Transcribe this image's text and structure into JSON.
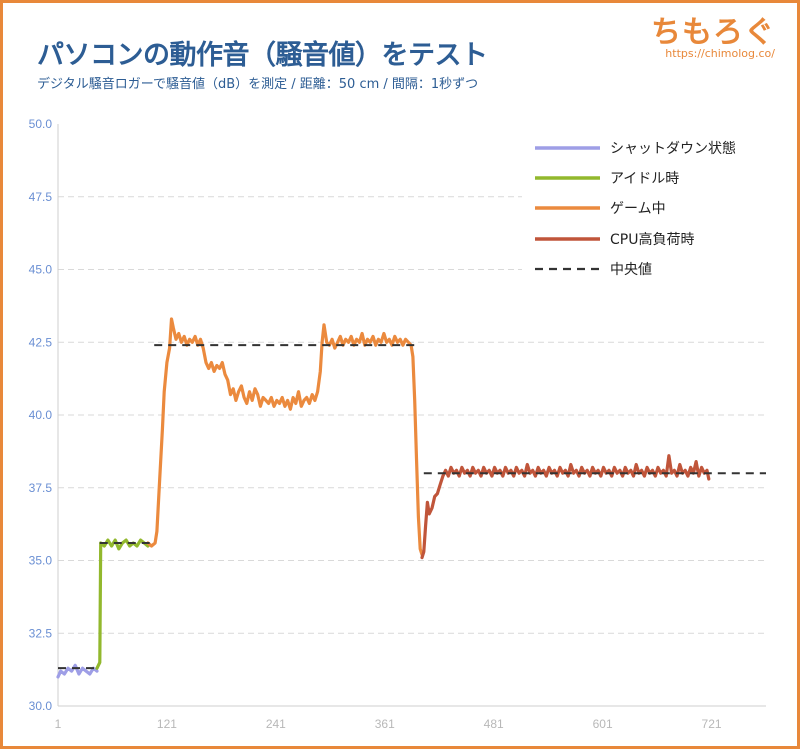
{
  "brand": {
    "logo_text": "ちもろぐ",
    "url": "https://chimolog.co/"
  },
  "chart_data": {
    "type": "line",
    "title": "パソコンの動作音（騒音値）をテスト",
    "subtitle": "デジタル騒音ロガーで騒音値（dB）を測定 / 距離：50 cm / 間隔：1秒ずつ",
    "xlabel": "",
    "ylabel": "",
    "xlim": [
      1,
      781
    ],
    "ylim": [
      30,
      50
    ],
    "x_ticks": [
      1,
      121,
      241,
      361,
      481,
      601,
      721
    ],
    "x_tick_labels": [
      "1",
      "121",
      "241",
      "361",
      "481",
      "601",
      "721"
    ],
    "y_ticks": [
      30,
      32.5,
      35,
      37.5,
      40,
      42.5,
      45,
      47.5,
      50
    ],
    "y_tick_labels": [
      "30.0",
      "32.5",
      "35.0",
      "37.5",
      "40.0",
      "42.5",
      "45.0",
      "47.5",
      "50.0"
    ],
    "grid": true,
    "legend_position": "top-right",
    "series": [
      {
        "name": "シャットダウン状態",
        "color": "#9e9ee6",
        "points": [
          [
            1,
            31.0
          ],
          [
            4,
            31.2
          ],
          [
            8,
            31.1
          ],
          [
            12,
            31.3
          ],
          [
            16,
            31.2
          ],
          [
            20,
            31.4
          ],
          [
            24,
            31.1
          ],
          [
            28,
            31.3
          ],
          [
            32,
            31.2
          ],
          [
            36,
            31.1
          ],
          [
            40,
            31.3
          ],
          [
            44,
            31.2
          ]
        ]
      },
      {
        "name": "アイドル時",
        "color": "#92b82d",
        "points": [
          [
            44,
            31.3
          ],
          [
            47,
            31.5
          ],
          [
            48,
            35.6
          ],
          [
            52,
            35.5
          ],
          [
            56,
            35.7
          ],
          [
            60,
            35.5
          ],
          [
            64,
            35.7
          ],
          [
            68,
            35.4
          ],
          [
            72,
            35.6
          ],
          [
            76,
            35.7
          ],
          [
            80,
            35.5
          ],
          [
            84,
            35.6
          ],
          [
            88,
            35.5
          ],
          [
            92,
            35.7
          ],
          [
            96,
            35.6
          ],
          [
            100,
            35.5
          ]
        ]
      },
      {
        "name": "ゲーム中",
        "color": "#eb8a3e",
        "points": [
          [
            100,
            35.6
          ],
          [
            104,
            35.5
          ],
          [
            108,
            35.6
          ],
          [
            110,
            36.0
          ],
          [
            113,
            37.8
          ],
          [
            116,
            39.5
          ],
          [
            118,
            40.8
          ],
          [
            121,
            41.8
          ],
          [
            124,
            42.3
          ],
          [
            126,
            43.3
          ],
          [
            128,
            43.0
          ],
          [
            131,
            42.6
          ],
          [
            134,
            42.8
          ],
          [
            137,
            42.5
          ],
          [
            140,
            42.7
          ],
          [
            143,
            42.4
          ],
          [
            146,
            42.6
          ],
          [
            149,
            42.5
          ],
          [
            152,
            42.7
          ],
          [
            155,
            42.4
          ],
          [
            158,
            42.6
          ],
          [
            161,
            42.3
          ],
          [
            164,
            41.8
          ],
          [
            167,
            41.6
          ],
          [
            170,
            41.8
          ],
          [
            173,
            41.5
          ],
          [
            176,
            41.7
          ],
          [
            179,
            41.6
          ],
          [
            182,
            41.8
          ],
          [
            185,
            41.4
          ],
          [
            188,
            41.2
          ],
          [
            191,
            40.7
          ],
          [
            194,
            40.9
          ],
          [
            197,
            40.5
          ],
          [
            200,
            40.8
          ],
          [
            203,
            41.0
          ],
          [
            206,
            40.6
          ],
          [
            209,
            40.4
          ],
          [
            212,
            40.8
          ],
          [
            215,
            40.5
          ],
          [
            218,
            40.9
          ],
          [
            221,
            40.7
          ],
          [
            224,
            40.3
          ],
          [
            227,
            40.6
          ],
          [
            230,
            40.5
          ],
          [
            233,
            40.4
          ],
          [
            236,
            40.6
          ],
          [
            239,
            40.3
          ],
          [
            242,
            40.5
          ],
          [
            245,
            40.4
          ],
          [
            248,
            40.6
          ],
          [
            251,
            40.3
          ],
          [
            254,
            40.5
          ],
          [
            257,
            40.2
          ],
          [
            260,
            40.6
          ],
          [
            263,
            40.4
          ],
          [
            266,
            40.8
          ],
          [
            269,
            40.3
          ],
          [
            272,
            40.5
          ],
          [
            275,
            40.6
          ],
          [
            278,
            40.4
          ],
          [
            281,
            40.7
          ],
          [
            284,
            40.5
          ],
          [
            287,
            40.8
          ],
          [
            290,
            41.5
          ],
          [
            292,
            42.5
          ],
          [
            294,
            43.1
          ],
          [
            297,
            42.5
          ],
          [
            300,
            42.4
          ],
          [
            303,
            42.6
          ],
          [
            306,
            42.3
          ],
          [
            309,
            42.5
          ],
          [
            312,
            42.7
          ],
          [
            315,
            42.4
          ],
          [
            318,
            42.6
          ],
          [
            321,
            42.5
          ],
          [
            324,
            42.7
          ],
          [
            327,
            42.4
          ],
          [
            330,
            42.6
          ],
          [
            333,
            42.5
          ],
          [
            336,
            42.8
          ],
          [
            339,
            42.4
          ],
          [
            342,
            42.6
          ],
          [
            345,
            42.5
          ],
          [
            348,
            42.7
          ],
          [
            351,
            42.4
          ],
          [
            354,
            42.6
          ],
          [
            357,
            42.5
          ],
          [
            360,
            42.8
          ],
          [
            363,
            42.5
          ],
          [
            366,
            42.6
          ],
          [
            369,
            42.4
          ],
          [
            372,
            42.7
          ],
          [
            375,
            42.5
          ],
          [
            378,
            42.6
          ],
          [
            381,
            42.4
          ],
          [
            384,
            42.6
          ],
          [
            387,
            42.5
          ],
          [
            390,
            42.4
          ],
          [
            392,
            42.0
          ],
          [
            394,
            40.5
          ],
          [
            396,
            38.5
          ],
          [
            398,
            36.5
          ],
          [
            400,
            35.4
          ],
          [
            402,
            35.2
          ]
        ]
      },
      {
        "name": "CPU高負荷時",
        "color": "#c0553a",
        "points": [
          [
            402,
            35.1
          ],
          [
            404,
            35.3
          ],
          [
            406,
            36.2
          ],
          [
            408,
            37.0
          ],
          [
            410,
            36.6
          ],
          [
            413,
            36.8
          ],
          [
            416,
            37.2
          ],
          [
            419,
            37.3
          ],
          [
            422,
            37.6
          ],
          [
            425,
            37.9
          ],
          [
            428,
            38.1
          ],
          [
            431,
            37.9
          ],
          [
            434,
            38.2
          ],
          [
            437,
            38.0
          ],
          [
            440,
            38.1
          ],
          [
            443,
            37.9
          ],
          [
            446,
            38.2
          ],
          [
            449,
            38.0
          ],
          [
            452,
            38.1
          ],
          [
            455,
            37.9
          ],
          [
            458,
            38.2
          ],
          [
            461,
            38.0
          ],
          [
            464,
            38.1
          ],
          [
            467,
            37.9
          ],
          [
            470,
            38.2
          ],
          [
            473,
            38.0
          ],
          [
            476,
            38.1
          ],
          [
            479,
            37.9
          ],
          [
            482,
            38.2
          ],
          [
            485,
            38.0
          ],
          [
            488,
            38.1
          ],
          [
            491,
            37.9
          ],
          [
            494,
            38.2
          ],
          [
            497,
            38.0
          ],
          [
            500,
            38.1
          ],
          [
            503,
            37.9
          ],
          [
            506,
            38.2
          ],
          [
            509,
            38.0
          ],
          [
            512,
            38.1
          ],
          [
            515,
            37.9
          ],
          [
            518,
            38.3
          ],
          [
            521,
            38.0
          ],
          [
            524,
            38.1
          ],
          [
            527,
            37.9
          ],
          [
            530,
            38.2
          ],
          [
            533,
            38.0
          ],
          [
            536,
            38.1
          ],
          [
            539,
            37.9
          ],
          [
            542,
            38.2
          ],
          [
            545,
            38.0
          ],
          [
            548,
            38.1
          ],
          [
            551,
            37.9
          ],
          [
            554,
            38.2
          ],
          [
            557,
            38.0
          ],
          [
            560,
            38.1
          ],
          [
            563,
            37.9
          ],
          [
            566,
            38.3
          ],
          [
            569,
            38.0
          ],
          [
            572,
            38.1
          ],
          [
            575,
            37.9
          ],
          [
            578,
            38.2
          ],
          [
            581,
            38.0
          ],
          [
            584,
            38.1
          ],
          [
            587,
            37.9
          ],
          [
            590,
            38.2
          ],
          [
            593,
            38.0
          ],
          [
            596,
            38.1
          ],
          [
            599,
            37.9
          ],
          [
            602,
            38.2
          ],
          [
            605,
            38.0
          ],
          [
            608,
            38.1
          ],
          [
            611,
            37.9
          ],
          [
            614,
            38.2
          ],
          [
            617,
            38.0
          ],
          [
            620,
            38.1
          ],
          [
            623,
            37.9
          ],
          [
            626,
            38.2
          ],
          [
            629,
            38.0
          ],
          [
            632,
            38.1
          ],
          [
            635,
            37.9
          ],
          [
            638,
            38.3
          ],
          [
            641,
            38.0
          ],
          [
            644,
            38.1
          ],
          [
            647,
            37.9
          ],
          [
            650,
            38.2
          ],
          [
            653,
            38.0
          ],
          [
            656,
            38.1
          ],
          [
            659,
            37.9
          ],
          [
            662,
            38.2
          ],
          [
            665,
            38.0
          ],
          [
            668,
            38.1
          ],
          [
            671,
            37.9
          ],
          [
            674,
            38.6
          ],
          [
            677,
            38.0
          ],
          [
            680,
            38.1
          ],
          [
            683,
            37.9
          ],
          [
            686,
            38.3
          ],
          [
            689,
            38.0
          ],
          [
            692,
            38.1
          ],
          [
            695,
            37.9
          ],
          [
            698,
            38.2
          ],
          [
            701,
            38.0
          ],
          [
            704,
            38.4
          ],
          [
            707,
            37.9
          ],
          [
            710,
            38.2
          ],
          [
            713,
            38.0
          ],
          [
            716,
            38.1
          ],
          [
            718,
            37.8
          ]
        ]
      }
    ],
    "median": {
      "name": "中央値",
      "color": "#333333",
      "segments": [
        {
          "x": [
            1,
            45
          ],
          "y": 31.3
        },
        {
          "x": [
            47,
            102
          ],
          "y": 35.6
        },
        {
          "x": [
            107,
            400
          ],
          "y": 42.4
        },
        {
          "x": [
            404,
            781
          ],
          "y": 38.0
        }
      ]
    }
  }
}
